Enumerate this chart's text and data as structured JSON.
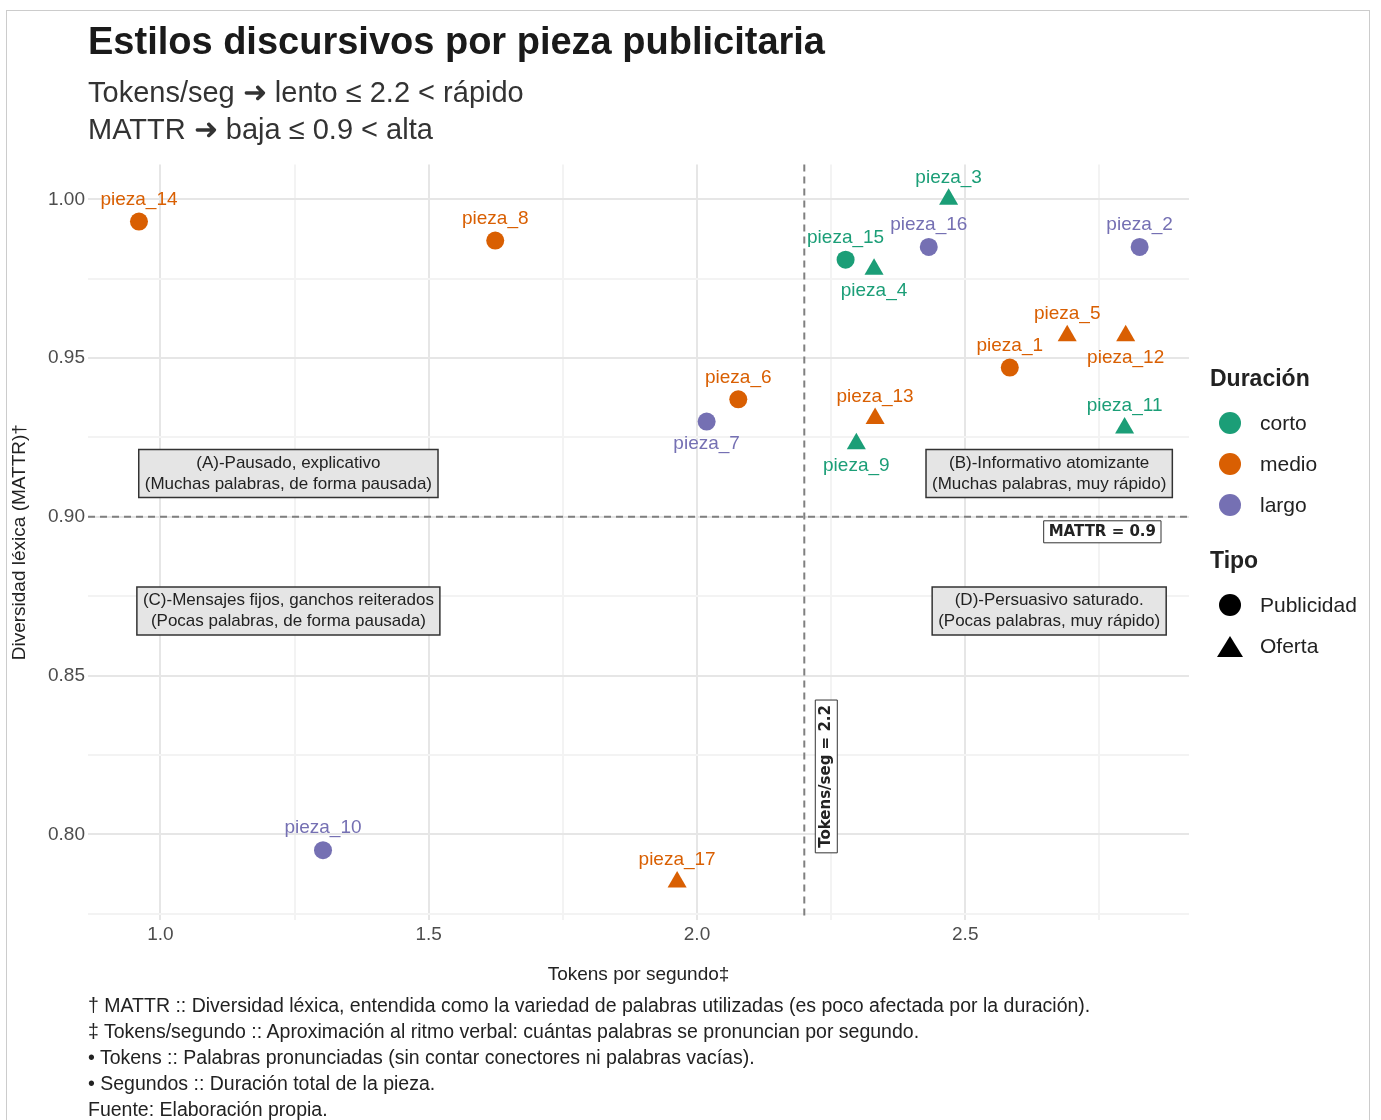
{
  "chart_data": {
    "type": "scatter",
    "title": "Estilos discursivos por pieza publicitaria",
    "subtitle": "Tokens/seg ➜ lento ≤ 2.2 < rápido\nMATTR ➜ baja ≤ 0.9 < alta",
    "xlabel": "Tokens por segundo‡",
    "ylabel": "Diversidad léxica (MATTR)†",
    "legend_title": [
      "Duración",
      "Tipo"
    ],
    "legend": "right",
    "grid": true,
    "xlim": [
      0.865,
      2.917
    ],
    "xticks": [
      {
        "value": 1,
        "label": "1.0"
      },
      {
        "value": 1.25,
        "label": null
      },
      {
        "value": 1.5,
        "label": "1.5"
      },
      {
        "value": 1.75,
        "label": null
      },
      {
        "value": 2,
        "label": "2.0"
      },
      {
        "value": 2.25,
        "label": null
      },
      {
        "value": 2.5,
        "label": "2.5"
      },
      {
        "value": 2.75,
        "label": null
      }
    ],
    "ylim": [
      0.773,
      1.011
    ],
    "yticks": [
      {
        "value": 0.775,
        "label": null
      },
      {
        "value": 0.8,
        "label": "0.80"
      },
      {
        "value": 0.825,
        "label": null
      },
      {
        "value": 0.85,
        "label": "0.85"
      },
      {
        "value": 0.875,
        "label": null
      },
      {
        "value": 0.9,
        "label": "0.90"
      },
      {
        "value": 0.925,
        "label": null
      },
      {
        "value": 0.95,
        "label": "0.95"
      },
      {
        "value": 0.975,
        "label": null
      },
      {
        "value": 1,
        "label": "1.00"
      }
    ],
    "series": [
      {
        "name": "corto",
        "color": "#1b9e77"
      },
      {
        "name": "medio",
        "color": "#d95f02"
      },
      {
        "name": "largo",
        "color": "#7570b3"
      },
      {
        "name": "Publicidad",
        "color": "#000000",
        "marker": "circle",
        "x": [
          0.96,
          1.624,
          2.277,
          2.432,
          2.825,
          2.583,
          2.077,
          2.018,
          1.303
        ],
        "values": [
          0.993,
          0.987,
          0.981,
          0.985,
          0.985,
          0.947,
          0.937,
          0.93,
          0.795
        ],
        "colors": [
          "#d95f02",
          "#d95f02",
          "#1b9e77",
          "#7570b3",
          "#7570b3",
          "#d95f02",
          "#d95f02",
          "#7570b3",
          "#7570b3"
        ]
      },
      {
        "name": "Oferta",
        "color": "#000000",
        "marker": "triangle",
        "x": [
          2.469,
          2.33,
          2.69,
          2.799,
          2.332,
          2.297,
          2.797,
          1.963
        ],
        "values": [
          1.0,
          0.978,
          0.957,
          0.957,
          0.931,
          0.923,
          0.928,
          0.785
        ],
        "colors": [
          "#1b9e77",
          "#1b9e77",
          "#d95f02",
          "#d95f02",
          "#d95f02",
          "#1b9e77",
          "#1b9e77",
          "#d95f02"
        ]
      }
    ],
    "ref_lines": [
      {
        "axis": "y",
        "value": 0.9,
        "label": "MATTR = 0.9",
        "color": "#808080",
        "line_style": "dashed"
      },
      {
        "axis": "x",
        "value": 2.2,
        "label": "Tokens/seg = 2.2",
        "color": "#808080",
        "line_style": "dashed"
      }
    ],
    "annotations": [
      "(A)-Pausado, explicativo\n(Muchas palabras, de forma pausada)",
      "(B)-Informativo atomizante\n(Muchas palabras, muy rápido)",
      "(C)-Mensajes fijos, ganchos reiterados\n(Pocas palabras, de forma pausada)",
      "(D)-Persuasivo saturado.\n(Pocas palabras, muy rápido)",
      {
        "text": "pieza_14",
        "x": 0.96,
        "y": 0.993
      },
      {
        "text": "pieza_8",
        "x": 1.624,
        "y": 0.987
      },
      {
        "text": "pieza_15",
        "x": 2.277,
        "y": 0.981
      },
      {
        "text": "pieza_16",
        "x": 2.432,
        "y": 0.985
      },
      {
        "text": "pieza_2",
        "x": 2.825,
        "y": 0.985
      },
      {
        "text": "pieza_1",
        "x": 2.583,
        "y": 0.947
      },
      {
        "text": "pieza_6",
        "x": 2.077,
        "y": 0.937
      },
      {
        "text": "pieza_7",
        "x": 2.018,
        "y": 0.93
      },
      {
        "text": "pieza_10",
        "x": 1.303,
        "y": 0.795
      },
      {
        "text": "pieza_3",
        "x": 2.469,
        "y": 1.0
      },
      {
        "text": "pieza_4",
        "x": 2.33,
        "y": 0.978
      },
      {
        "text": "pieza_5",
        "x": 2.69,
        "y": 0.957
      },
      {
        "text": "pieza_12",
        "x": 2.799,
        "y": 0.957
      },
      {
        "text": "pieza_13",
        "x": 2.332,
        "y": 0.931
      },
      {
        "text": "pieza_9",
        "x": 2.297,
        "y": 0.923
      },
      {
        "text": "pieza_11",
        "x": 2.797,
        "y": 0.928
      },
      {
        "text": "pieza_17",
        "x": 1.963,
        "y": 0.785
      },
      "† MATTR :: Diversidad léxica, entendida como la variedad de palabras utilizadas (es poco afectada por la duración).",
      "‡ Tokens/segundo :: Aproximación al ritmo verbal: cuántas palabras se pronuncian por segundo.",
      "• Tokens :: Palabras pronunciadas (sin contar conectores ni palabras vacías).",
      "• Segundos :: Duración total de la pieza.",
      "Fuente: Elaboración propia."
    ]
  }
}
